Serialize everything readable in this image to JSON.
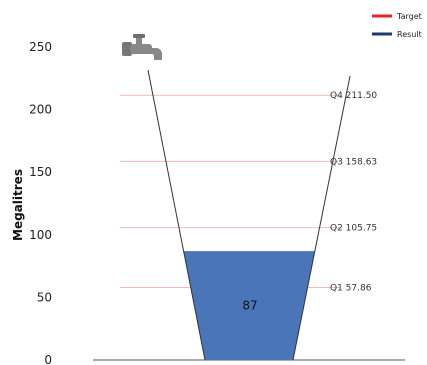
{
  "chart_data": {
    "type": "bar",
    "ylabel": "Megalitres",
    "ylim": [
      0,
      250
    ],
    "yticks": [
      "0",
      "50",
      "100",
      "150",
      "200",
      "250"
    ],
    "series": [
      {
        "name": "Result",
        "values": [
          87
        ]
      }
    ],
    "result_label": "87",
    "targets": [
      {
        "label": "Q1  57.86",
        "value": 57.86
      },
      {
        "label": "Q2  105.75",
        "value": 105.75
      },
      {
        "label": "Q3  158.63",
        "value": 158.63
      },
      {
        "label": "Q4  211.50",
        "value": 211.5
      }
    ],
    "legend": [
      {
        "name": "Target",
        "color": "#e8232b"
      },
      {
        "name": "Result",
        "color": "#1f3a68"
      }
    ],
    "legend_position": "top-right",
    "grid": false,
    "colors": {
      "fill": "#4a76b9",
      "target_line": "#f2b8bc",
      "funnel_outline": "#333333"
    },
    "icon": "water-tap-icon"
  }
}
